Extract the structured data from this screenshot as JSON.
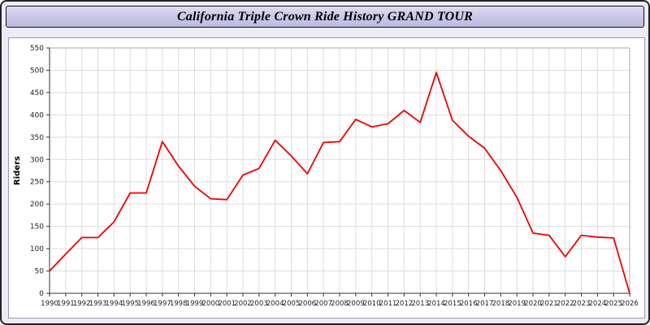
{
  "chart_data": {
    "type": "line",
    "title": "California Triple Crown Ride History GRAND TOUR",
    "xlabel": "",
    "ylabel": "Riders",
    "ylim": [
      0,
      550
    ],
    "y_tick_step": 50,
    "grid": true,
    "legend_position": "none",
    "line_color": "#ee0000",
    "x": [
      1990,
      1991,
      1992,
      1993,
      1994,
      1995,
      1996,
      1997,
      1998,
      1999,
      2000,
      2001,
      2002,
      2003,
      2004,
      2005,
      2006,
      2007,
      2008,
      2009,
      2010,
      2011,
      2012,
      2013,
      2014,
      2015,
      2016,
      2017,
      2018,
      2019,
      2020,
      2021,
      2022,
      2023,
      2024,
      2025,
      2026
    ],
    "series": [
      {
        "name": "Riders",
        "color": "#ee0000",
        "values": [
          50,
          88,
          125,
          125,
          160,
          225,
          225,
          340,
          285,
          240,
          212,
          210,
          265,
          280,
          343,
          308,
          268,
          338,
          340,
          390,
          373,
          380,
          410,
          383,
          495,
          388,
          352,
          325,
          275,
          215,
          135,
          130,
          82,
          130,
          126,
          124,
          0
        ]
      }
    ]
  }
}
